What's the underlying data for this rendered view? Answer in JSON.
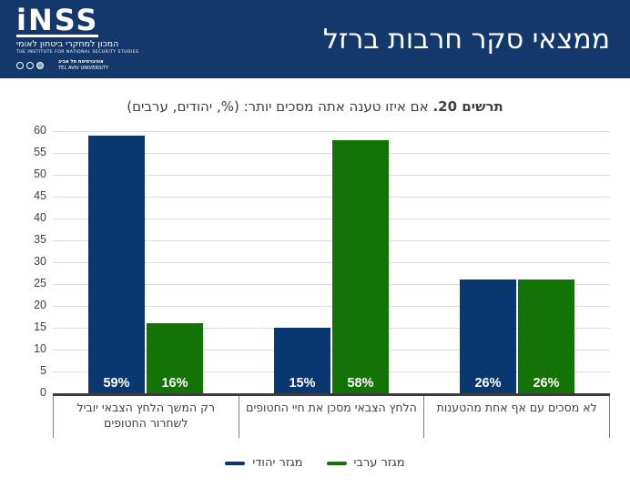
{
  "header": {
    "title": "ממצאי סקר חרבות ברזל",
    "bg_color": "#13396C",
    "logo": {
      "wordmark": "iNSS",
      "subtitle_he": "המכון למחקרי ביטחון לאומי",
      "subtitle_en": "THE INSTITUTE FOR NATIONAL SECURITY STUDIES",
      "university_he": "אוניברסיטת תל אביב",
      "university_en": "TEL AVIV UNIVERSITY"
    }
  },
  "chart_title": {
    "prefix_bold": "תרשים 20.",
    "rest": " אם איזו טענה אתה מסכים יותר: (%, יהודים, ערבים)"
  },
  "chart_data": {
    "type": "bar",
    "direction": "rtl",
    "categories": [
      "רק המשך הלחץ הצבאי יוביל לשחרור החטופים",
      "הלחץ הצבאי מסכן את חיי החטופים",
      "לא מסכים עם אף אחת מהטענות"
    ],
    "series": [
      {
        "name": "מגזר יהודי",
        "color": "#093770",
        "values": [
          59,
          15,
          26
        ]
      },
      {
        "name": "מגזר ערבי",
        "color": "#147306",
        "values": [
          16,
          58,
          26
        ]
      }
    ],
    "value_label_format": "{v}%",
    "value_labels_shown": [
      "59%",
      "16%",
      "15%",
      "58%",
      "26%",
      "26%"
    ],
    "ylim": [
      0,
      60
    ],
    "ytick_step": 5,
    "yticks": [
      0,
      5,
      10,
      15,
      20,
      25,
      30,
      35,
      40,
      45,
      50,
      55,
      60
    ],
    "grid": true,
    "legend_position": "bottom",
    "gridline_color": "#DCDCDC",
    "axis_line_color": "#3B3B3B",
    "category_divider_color": "#7F7F7F",
    "text_color": "#3F3F3F",
    "bar_label_color": "#FFFFFF"
  }
}
